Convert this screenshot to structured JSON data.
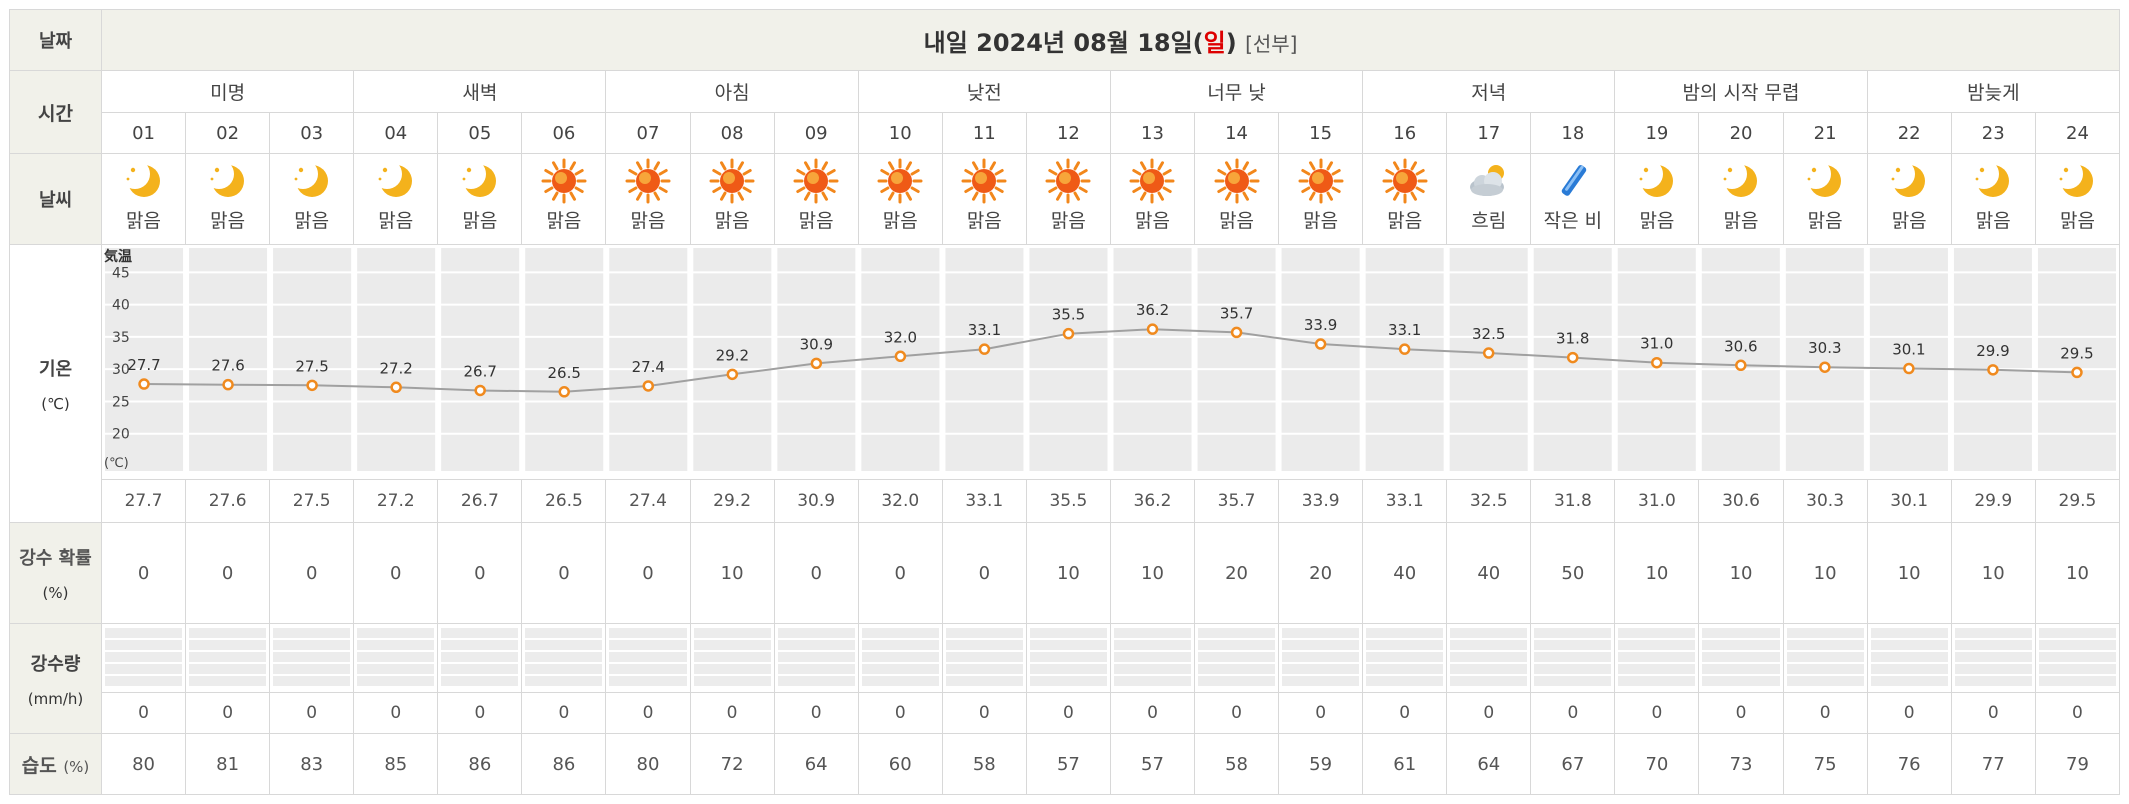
{
  "labels": {
    "date": "날짜",
    "time": "시간",
    "weather": "날씨",
    "temp": "기온",
    "temp_unit": "(℃)",
    "prob": "강수 확률",
    "prob_unit": "(%)",
    "rain": "강수량",
    "rain_unit": "(mm/h)",
    "humidity": "습도",
    "humidity_unit": "(%)"
  },
  "title": {
    "prefix": "내일 2024년 08월 18일(",
    "day": "일",
    "suffix": ")",
    "source": "[선부]"
  },
  "periods": [
    {
      "label": "미명",
      "span": 3
    },
    {
      "label": "새벽",
      "span": 3
    },
    {
      "label": "아침",
      "span": 3
    },
    {
      "label": "낮전",
      "span": 3
    },
    {
      "label": "너무 낮",
      "span": 3
    },
    {
      "label": "저녁",
      "span": 3
    },
    {
      "label": "밤의 시작 무렵",
      "span": 3
    },
    {
      "label": "밤늦게",
      "span": 3
    }
  ],
  "hours": [
    "01",
    "02",
    "03",
    "04",
    "05",
    "06",
    "07",
    "08",
    "09",
    "10",
    "11",
    "12",
    "13",
    "14",
    "15",
    "16",
    "17",
    "18",
    "19",
    "20",
    "21",
    "22",
    "23",
    "24"
  ],
  "weather": [
    {
      "icon": "moon-icon",
      "text": "맑음"
    },
    {
      "icon": "moon-icon",
      "text": "맑음"
    },
    {
      "icon": "moon-icon",
      "text": "맑음"
    },
    {
      "icon": "moon-icon",
      "text": "맑음"
    },
    {
      "icon": "moon-icon",
      "text": "맑음"
    },
    {
      "icon": "sun-icon",
      "text": "맑음"
    },
    {
      "icon": "sun-icon",
      "text": "맑음"
    },
    {
      "icon": "sun-icon",
      "text": "맑음"
    },
    {
      "icon": "sun-icon",
      "text": "맑음"
    },
    {
      "icon": "sun-icon",
      "text": "맑음"
    },
    {
      "icon": "sun-icon",
      "text": "맑음"
    },
    {
      "icon": "sun-icon",
      "text": "맑음"
    },
    {
      "icon": "sun-icon",
      "text": "맑음"
    },
    {
      "icon": "sun-icon",
      "text": "맑음"
    },
    {
      "icon": "sun-icon",
      "text": "맑음"
    },
    {
      "icon": "sun-icon",
      "text": "맑음"
    },
    {
      "icon": "cloud-icon",
      "text": "흐림"
    },
    {
      "icon": "rain-icon",
      "text": "작은 비"
    },
    {
      "icon": "moon-icon",
      "text": "맑음"
    },
    {
      "icon": "moon-icon",
      "text": "맑음"
    },
    {
      "icon": "moon-icon",
      "text": "맑음"
    },
    {
      "icon": "moon-icon",
      "text": "맑음"
    },
    {
      "icon": "moon-icon",
      "text": "맑음"
    },
    {
      "icon": "moon-icon",
      "text": "맑음"
    }
  ],
  "temp_values": [
    "27.7",
    "27.6",
    "27.5",
    "27.2",
    "26.7",
    "26.5",
    "27.4",
    "29.2",
    "30.9",
    "32.0",
    "33.1",
    "35.5",
    "36.2",
    "35.7",
    "33.9",
    "33.1",
    "32.5",
    "31.8",
    "31.0",
    "30.6",
    "30.3",
    "30.1",
    "29.9",
    "29.5"
  ],
  "precip_prob": [
    "0",
    "0",
    "0",
    "0",
    "0",
    "0",
    "0",
    "10",
    "0",
    "0",
    "0",
    "10",
    "10",
    "20",
    "20",
    "40",
    "40",
    "50",
    "10",
    "10",
    "10",
    "10",
    "10",
    "10"
  ],
  "precip_amount": [
    "0",
    "0",
    "0",
    "0",
    "0",
    "0",
    "0",
    "0",
    "0",
    "0",
    "0",
    "0",
    "0",
    "0",
    "0",
    "0",
    "0",
    "0",
    "0",
    "0",
    "0",
    "0",
    "0",
    "0"
  ],
  "humidity": [
    "80",
    "81",
    "83",
    "85",
    "86",
    "86",
    "80",
    "72",
    "64",
    "60",
    "58",
    "57",
    "57",
    "58",
    "59",
    "61",
    "64",
    "67",
    "70",
    "73",
    "75",
    "76",
    "77",
    "79"
  ],
  "chart_data": {
    "type": "line",
    "categories": [
      "01",
      "02",
      "03",
      "04",
      "05",
      "06",
      "07",
      "08",
      "09",
      "10",
      "11",
      "12",
      "13",
      "14",
      "15",
      "16",
      "17",
      "18",
      "19",
      "20",
      "21",
      "22",
      "23",
      "24"
    ],
    "series": [
      {
        "values": [
          27.7,
          27.6,
          27.5,
          27.2,
          26.7,
          26.5,
          27.4,
          29.2,
          30.9,
          32.0,
          33.1,
          35.5,
          36.2,
          35.7,
          33.9,
          33.1,
          32.5,
          31.8,
          31.0,
          30.6,
          30.3,
          30.1,
          29.9,
          29.5
        ]
      }
    ],
    "ylabel_top": "気温",
    "ylabel_bottom": "(℃)",
    "yticks": [
      "45",
      "40",
      "35",
      "30",
      "25",
      "20"
    ],
    "ylim": [
      15,
      48
    ],
    "grid": true,
    "colors": {
      "line": "#a0a0a0",
      "marker": "#f08a1e",
      "plot_bg": "#ebebeb",
      "grid": "#ffffff"
    }
  }
}
